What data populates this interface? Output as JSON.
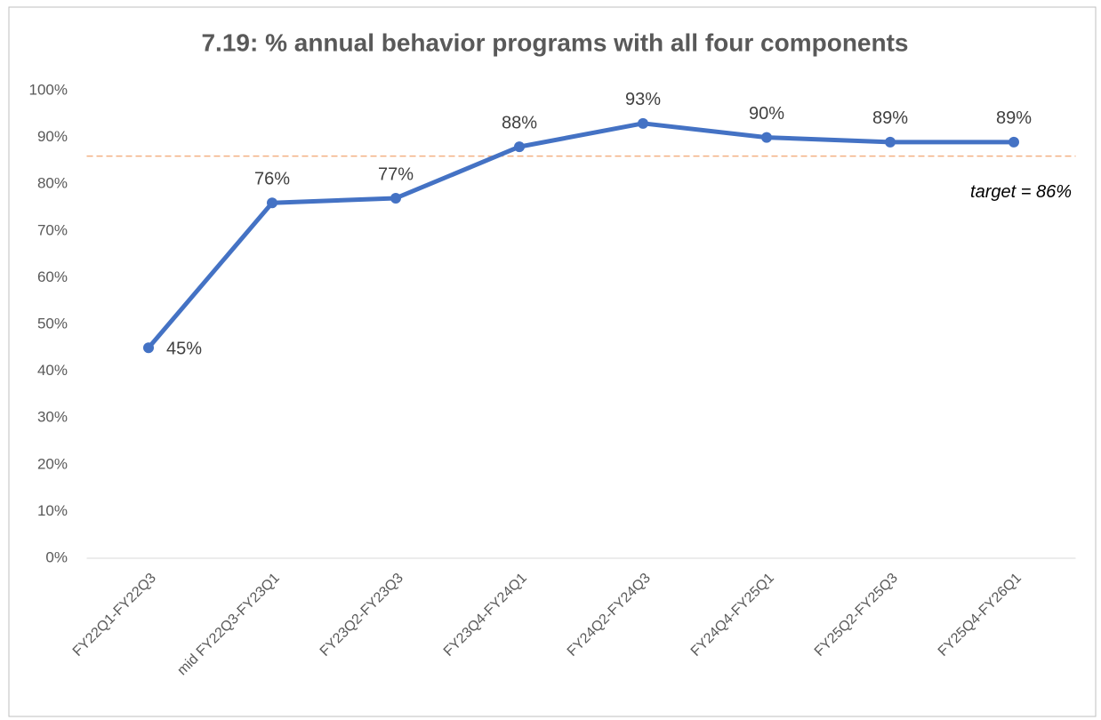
{
  "chart_data": {
    "type": "line",
    "title": "7.19: % annual behavior programs with all four components",
    "categories": [
      "FY22Q1-FY22Q3",
      "mid FY22Q3-FY23Q1",
      "FY23Q2-FY23Q3",
      "FY23Q4-FY24Q1",
      "FY24Q2-FY24Q3",
      "FY24Q4-FY25Q1",
      "FY25Q2-FY25Q3",
      "FY25Q4-FY26Q1"
    ],
    "series": [
      {
        "name": "% annual behavior programs with all four components",
        "color": "#4472c4",
        "values": [
          45,
          76,
          77,
          88,
          93,
          90,
          89,
          89
        ],
        "value_labels": [
          "45%",
          "76%",
          "77%",
          "88%",
          "93%",
          "90%",
          "89%",
          "89%"
        ]
      }
    ],
    "ylim": [
      0,
      100
    ],
    "yticks": [
      {
        "value": 0,
        "label": "0%"
      },
      {
        "value": 10,
        "label": "10%"
      },
      {
        "value": 20,
        "label": "20%"
      },
      {
        "value": 30,
        "label": "30%"
      },
      {
        "value": 40,
        "label": "40%"
      },
      {
        "value": 50,
        "label": "50%"
      },
      {
        "value": 60,
        "label": "60%"
      },
      {
        "value": 70,
        "label": "70%"
      },
      {
        "value": 80,
        "label": "80%"
      },
      {
        "value": 90,
        "label": "90%"
      },
      {
        "value": 100,
        "label": "100%"
      }
    ],
    "grid": false,
    "target": {
      "value": 86,
      "label": "target = 86%",
      "color": "#f4b183"
    }
  }
}
